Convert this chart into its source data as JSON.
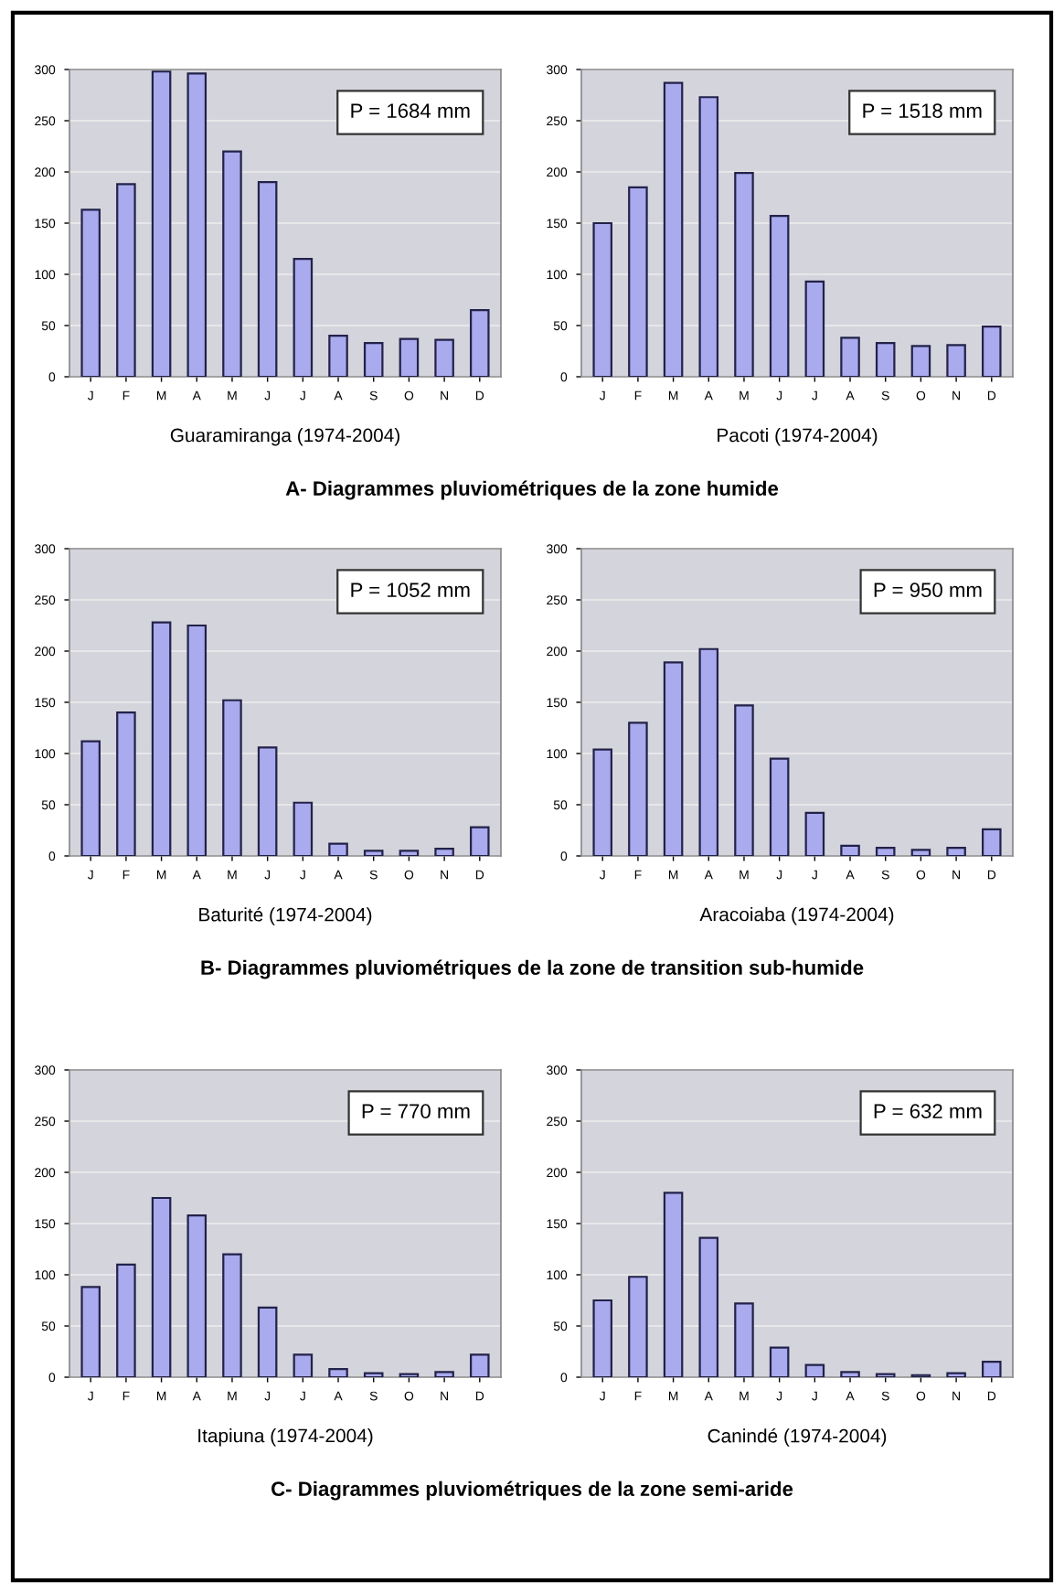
{
  "chart_data": [
    {
      "type": "bar",
      "categories": [
        "J",
        "F",
        "M",
        "A",
        "M",
        "J",
        "J",
        "A",
        "S",
        "O",
        "N",
        "D"
      ],
      "values": [
        163,
        188,
        298,
        296,
        220,
        190,
        115,
        40,
        33,
        37,
        36,
        65
      ],
      "color": "#aaaaee",
      "ylim": [
        0,
        300
      ],
      "yticks": [
        0,
        50,
        100,
        150,
        200,
        250,
        300
      ],
      "grid": "y",
      "xlabel": "Guaramiranga (1974-2004)",
      "annotations": [
        "P = 1684 mm",
        "A- Diagrammes pluviométriques de la zone humide"
      ]
    },
    {
      "type": "bar",
      "categories": [
        "J",
        "F",
        "M",
        "A",
        "M",
        "J",
        "J",
        "A",
        "S",
        "O",
        "N",
        "D"
      ],
      "values": [
        112,
        140,
        228,
        225,
        152,
        106,
        52,
        12,
        5,
        5,
        7,
        28
      ],
      "color": "#aaaaee",
      "ylim": [
        0,
        300
      ],
      "yticks": [
        0,
        50,
        100,
        150,
        200,
        250,
        300
      ],
      "grid": "y",
      "xlabel": "Baturité (1974-2004)",
      "annotations": [
        "P = 1052 mm",
        "B- Diagrammes pluviométriques de la zone de transition sub-humide"
      ]
    },
    {
      "type": "bar",
      "categories": [
        "J",
        "F",
        "M",
        "A",
        "M",
        "J",
        "J",
        "A",
        "S",
        "O",
        "N",
        "D"
      ],
      "values": [
        88,
        110,
        175,
        158,
        120,
        68,
        22,
        8,
        4,
        3,
        5,
        22
      ],
      "color": "#aaaaee",
      "ylim": [
        0,
        300
      ],
      "yticks": [
        0,
        50,
        100,
        150,
        200,
        250,
        300
      ],
      "grid": "y",
      "xlabel": "Itapiuna (1974-2004)",
      "annotations": [
        "P = 770 mm",
        "C- Diagrammes pluviométriques de la zone semi-aride"
      ]
    },
    {
      "type": "bar",
      "categories": [
        "J",
        "F",
        "M",
        "A",
        "M",
        "J",
        "J",
        "A",
        "S",
        "O",
        "N",
        "D"
      ],
      "values": [
        150,
        185,
        287,
        273,
        199,
        157,
        93,
        38,
        33,
        30,
        31,
        49
      ],
      "color": "#aaaaee",
      "ylim": [
        0,
        300
      ],
      "yticks": [
        0,
        50,
        100,
        150,
        200,
        250,
        300
      ],
      "grid": "y",
      "xlabel": "Pacoti (1974-2004)",
      "annotations": [
        "P = 1518 mm"
      ]
    },
    {
      "type": "bar",
      "categories": [
        "J",
        "F",
        "M",
        "A",
        "M",
        "J",
        "J",
        "A",
        "S",
        "O",
        "N",
        "D"
      ],
      "values": [
        104,
        130,
        189,
        202,
        147,
        95,
        42,
        10,
        8,
        6,
        8,
        26
      ],
      "color": "#aaaaee",
      "ylim": [
        0,
        300
      ],
      "yticks": [
        0,
        50,
        100,
        150,
        200,
        250,
        300
      ],
      "grid": "y",
      "xlabel": "Aracoiaba (1974-2004)",
      "annotations": [
        "P = 950 mm"
      ]
    },
    {
      "type": "bar",
      "categories": [
        "J",
        "F",
        "M",
        "A",
        "M",
        "J",
        "J",
        "A",
        "S",
        "O",
        "N",
        "D"
      ],
      "values": [
        75,
        98,
        180,
        136,
        72,
        29,
        12,
        5,
        3,
        2,
        4,
        15
      ],
      "color": "#aaaaee",
      "ylim": [
        0,
        300
      ],
      "yticks": [
        0,
        50,
        100,
        150,
        200,
        250,
        300
      ],
      "grid": "y",
      "xlabel": "Canindé (1974-2004)",
      "annotations": [
        "P = 632 mm"
      ]
    }
  ]
}
